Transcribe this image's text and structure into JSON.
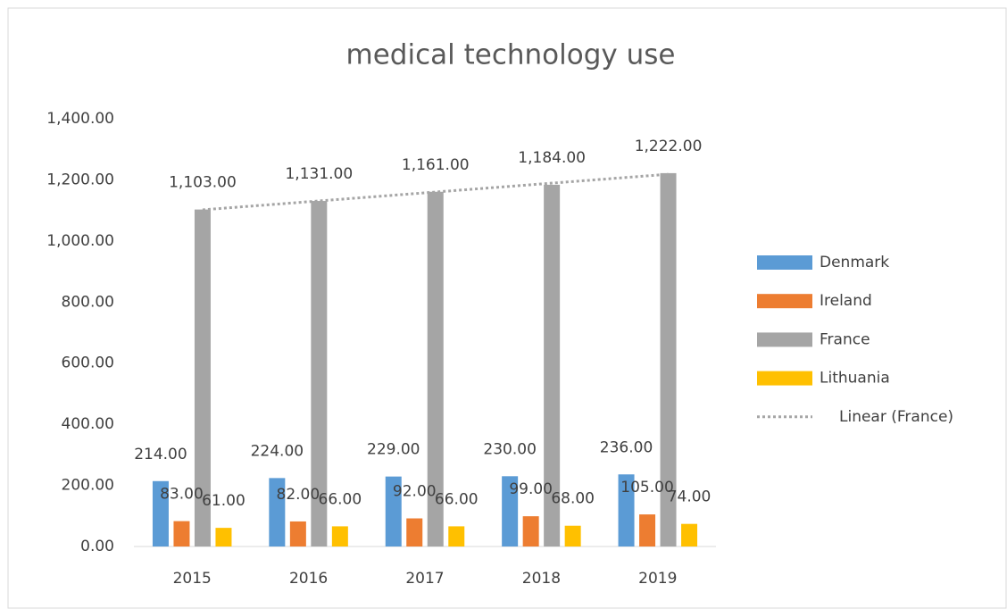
{
  "chart_data": {
    "type": "bar",
    "title": "medical technology use",
    "categories": [
      "2015",
      "2016",
      "2017",
      "2018",
      "2019"
    ],
    "series": [
      {
        "name": "Denmark",
        "color": "#5b9bd5",
        "values": [
          214,
          224,
          229,
          230,
          236
        ],
        "value_labels": [
          "214.00",
          "224.00",
          "229.00",
          "230.00",
          "236.00"
        ]
      },
      {
        "name": "Ireland",
        "color": "#ed7d31",
        "values": [
          83,
          82,
          92,
          99,
          105
        ],
        "value_labels": [
          "83.00",
          "82.00",
          "92.00",
          "99.00",
          "105.00"
        ]
      },
      {
        "name": "France",
        "color": "#a5a5a5",
        "values": [
          1103,
          1131,
          1161,
          1184,
          1222
        ],
        "value_labels": [
          "1,103.00",
          "1,131.00",
          "1,161.00",
          "1,184.00",
          "1,222.00"
        ],
        "trendline": {
          "type": "linear",
          "name": "Linear (France)",
          "color": "#a5a5a5"
        }
      },
      {
        "name": "Lithuania",
        "color": "#ffc000",
        "values": [
          61,
          66,
          66,
          68,
          74
        ],
        "value_labels": [
          "61.00",
          "66.00",
          "66.00",
          "68.00",
          "74.00"
        ]
      }
    ],
    "ylim": [
      0,
      1400
    ],
    "yticks": [
      {
        "value": 0,
        "label": "0.00"
      },
      {
        "value": 200,
        "label": "200.00"
      },
      {
        "value": 400,
        "label": "400.00"
      },
      {
        "value": 600,
        "label": "600.00"
      },
      {
        "value": 800,
        "label": "800.00"
      },
      {
        "value": 1000,
        "label": "1,000.00"
      },
      {
        "value": 1200,
        "label": "1,200.00"
      },
      {
        "value": 1400,
        "label": "1,400.00"
      }
    ],
    "grid": false,
    "legend": "right"
  }
}
